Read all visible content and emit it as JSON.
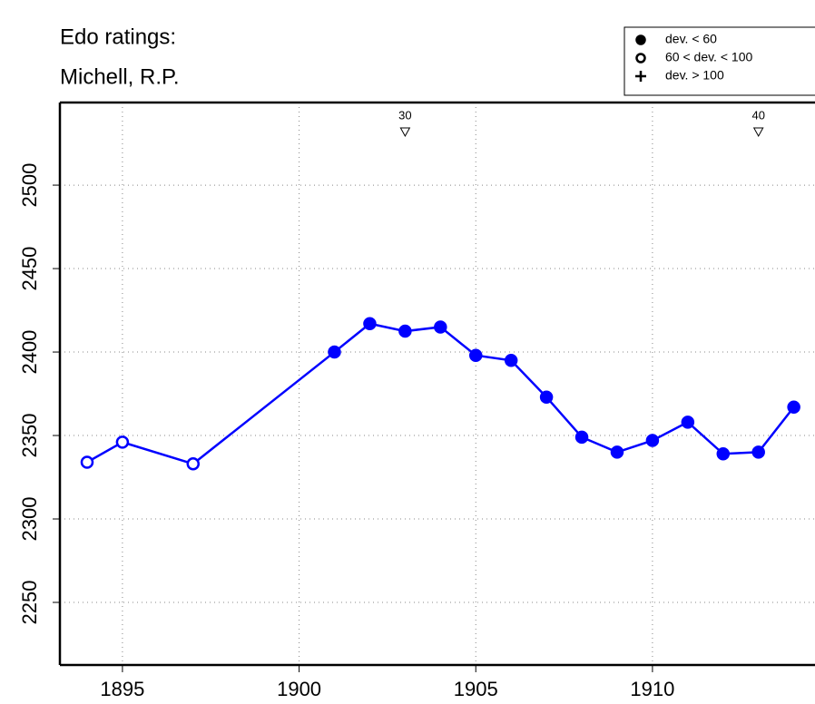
{
  "chart_data": {
    "type": "line",
    "title": [
      "Edo ratings:",
      "Michell, R.P."
    ],
    "x": [
      1894,
      1895,
      1897,
      1901,
      1902,
      1903,
      1904,
      1905,
      1906,
      1907,
      1908,
      1909,
      1910,
      1911,
      1912,
      1913,
      1914
    ],
    "series": [
      {
        "color": "#0000ff",
        "values": [
          2334,
          2346,
          2333,
          2400,
          2417,
          2412.5,
          2415,
          2398,
          2395,
          2373,
          2349,
          2340,
          2347,
          2358,
          2339,
          2340,
          2367
        ],
        "markers": [
          "open",
          "open",
          "open",
          "filled",
          "filled",
          "filled",
          "filled",
          "filled",
          "filled",
          "filled",
          "filled",
          "filled",
          "filled",
          "filled",
          "filled",
          "filled",
          "filled"
        ]
      }
    ],
    "xlim": [
      1893.23,
      1914.6
    ],
    "xticks": [
      1895,
      1900,
      1905,
      1910
    ],
    "ylim": [
      2212.5,
      2549.5
    ],
    "yticks": [
      2250,
      2300,
      2350,
      2400,
      2450,
      2500
    ],
    "grid": true,
    "legend_position": "top-right",
    "legend": [
      {
        "label": "dev. < 60",
        "marker": "filled"
      },
      {
        "label": "60 < dev. < 100",
        "marker": "open"
      },
      {
        "label": "dev. > 100",
        "marker": "plus"
      }
    ],
    "annotations": [
      {
        "x": 1903,
        "label": "30"
      },
      {
        "x": 1913,
        "label": "40"
      }
    ]
  }
}
